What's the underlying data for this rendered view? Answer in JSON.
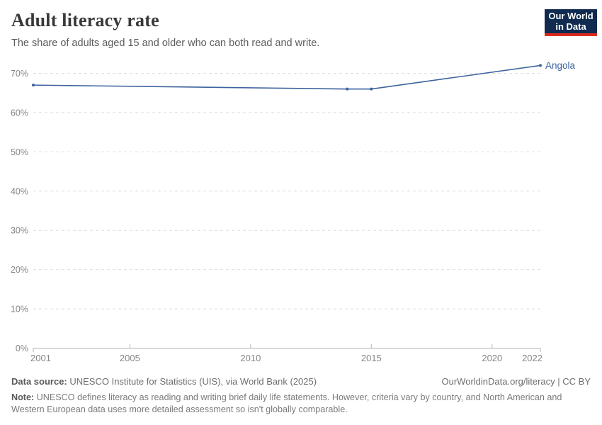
{
  "header": {
    "title": "Adult literacy rate",
    "subtitle": "The share of adults aged 15 and older who can both read and write.",
    "logo_line1": "Our World",
    "logo_line2": "in Data"
  },
  "colors": {
    "line": "#3d639e",
    "logo_bg": "#102a50",
    "logo_bar": "#dc2b1e",
    "grid": "#dedede",
    "axis": "#b3b3b3",
    "tick_label": "#858585"
  },
  "chart_data": {
    "type": "line",
    "title": "Adult literacy rate",
    "x": [
      2001,
      2014,
      2015,
      2022
    ],
    "series": [
      {
        "name": "Angola",
        "values": [
          67,
          66,
          66,
          72
        ],
        "color": "#3d639e"
      }
    ],
    "xlim": [
      2001,
      2022
    ],
    "ylim": [
      0,
      70
    ],
    "x_ticks": [
      2001,
      2005,
      2010,
      2015,
      2020,
      2022
    ],
    "y_ticks": [
      0,
      10,
      20,
      30,
      40,
      50,
      60,
      70
    ],
    "y_tick_suffix": "%",
    "grid": "horizontal-dashed",
    "legend": "series name labeled at end of line",
    "xlabel": "",
    "ylabel": ""
  },
  "footer": {
    "data_source_label": "Data source:",
    "data_source_text": " UNESCO Institute for Statistics (UIS), via World Bank (2025)",
    "citation": "OurWorldinData.org/literacy | CC BY",
    "note_label": "Note:",
    "note_text": " UNESCO defines literacy as reading and writing brief daily life statements. However, criteria vary by country, and North American and Western European data uses more detailed assessment so isn't globally comparable."
  }
}
